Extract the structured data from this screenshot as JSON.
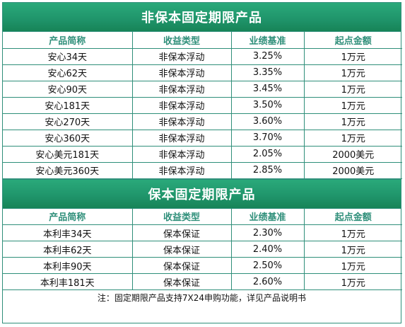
{
  "sections": [
    {
      "title": "非保本固定期限产品",
      "headers": [
        "产品简称",
        "收益类型",
        "业绩基准",
        "起点金额"
      ],
      "rows": [
        [
          "安心34天",
          "非保本浮动",
          "3.25%",
          "1万元"
        ],
        [
          "安心62天",
          "非保本浮动",
          "3.35%",
          "1万元"
        ],
        [
          "安心90天",
          "非保本浮动",
          "3.45%",
          "1万元"
        ],
        [
          "安心181天",
          "非保本浮动",
          "3.50%",
          "1万元"
        ],
        [
          "安心270天",
          "非保本浮动",
          "3.60%",
          "1万元"
        ],
        [
          "安心360天",
          "非保本浮动",
          "3.70%",
          "1万元"
        ],
        [
          "安心美元181天",
          "非保本浮动",
          "2.05%",
          "2000美元"
        ],
        [
          "安心美元360天",
          "非保本浮动",
          "2.85%",
          "2000美元"
        ]
      ]
    },
    {
      "title": "保本固定期限产品",
      "headers": [
        "产品简称",
        "收益类型",
        "业绩基准",
        "起点金额"
      ],
      "rows": [
        [
          "本利丰34天",
          "保本保证",
          "2.30%",
          "1万元"
        ],
        [
          "本利丰62天",
          "保本保证",
          "2.40%",
          "1万元"
        ],
        [
          "本利丰90天",
          "保本保证",
          "2.50%",
          "1万元"
        ],
        [
          "本利丰181天",
          "保本保证",
          "2.60%",
          "1万元"
        ]
      ]
    }
  ],
  "note": "注：固定期限产品支持7X24申购功能，详见产品说明书",
  "colors": {
    "banner": "#1f946a",
    "border": "#2f8f7a",
    "header_text": "#2f8f7a"
  }
}
